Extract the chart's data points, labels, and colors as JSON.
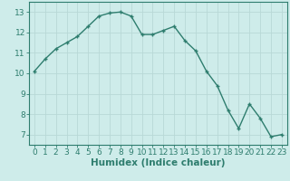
{
  "x": [
    0,
    1,
    2,
    3,
    4,
    5,
    6,
    7,
    8,
    9,
    10,
    11,
    12,
    13,
    14,
    15,
    16,
    17,
    18,
    19,
    20,
    21,
    22,
    23
  ],
  "y": [
    10.1,
    10.7,
    11.2,
    11.5,
    11.8,
    12.3,
    12.8,
    12.95,
    13.0,
    12.8,
    11.9,
    11.9,
    12.1,
    12.3,
    11.6,
    11.1,
    10.1,
    9.4,
    8.2,
    7.3,
    8.5,
    7.8,
    6.9,
    7.0
  ],
  "line_color": "#2e7d6e",
  "marker": "+",
  "xlabel": "Humidex (Indice chaleur)",
  "bg_color": "#ceecea",
  "grid_color": "#b8d8d6",
  "axis_color": "#2e7d6e",
  "ylim": [
    6.5,
    13.5
  ],
  "xlim": [
    -0.5,
    23.5
  ],
  "yticks": [
    7,
    8,
    9,
    10,
    11,
    12,
    13
  ],
  "xticks": [
    0,
    1,
    2,
    3,
    4,
    5,
    6,
    7,
    8,
    9,
    10,
    11,
    12,
    13,
    14,
    15,
    16,
    17,
    18,
    19,
    20,
    21,
    22,
    23
  ],
  "tick_labelsize": 6.5,
  "xlabel_fontsize": 7.5
}
